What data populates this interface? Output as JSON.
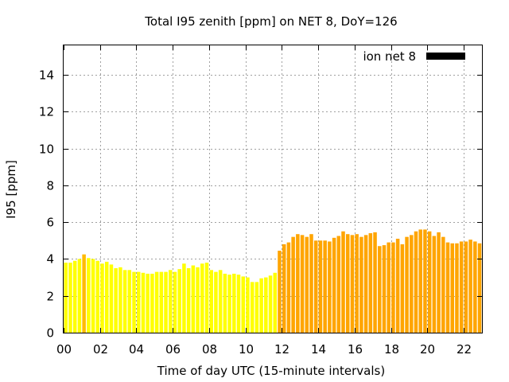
{
  "chart_data": {
    "type": "bar",
    "title": "Total I95 zenith [ppm] on NET 8, DoY=126",
    "xlabel": "Time of day UTC (15-minute intervals)",
    "ylabel": "I95 [ppm]",
    "xlim": [
      0,
      23
    ],
    "ylim": [
      0,
      15.6
    ],
    "bin_hours": 0.25,
    "grid": true,
    "legend": {
      "label": "ion net 8",
      "color": "#000000",
      "placement": "top-right"
    },
    "x_ticks": [
      "00",
      "02",
      "04",
      "06",
      "08",
      "10",
      "12",
      "14",
      "16",
      "18",
      "20",
      "22"
    ],
    "y_ticks": [
      "0",
      "2",
      "4",
      "6",
      "8",
      "10",
      "12",
      "14"
    ],
    "colors": {
      "low": "#ffff00",
      "low_highlight": "#ffbb00",
      "high": "#ffa500"
    },
    "values": [
      3.8,
      3.8,
      3.9,
      4.0,
      4.25,
      4.05,
      4.0,
      3.9,
      3.75,
      3.85,
      3.7,
      3.5,
      3.55,
      3.4,
      3.4,
      3.3,
      3.3,
      3.25,
      3.2,
      3.2,
      3.3,
      3.3,
      3.3,
      3.4,
      3.3,
      3.45,
      3.75,
      3.5,
      3.65,
      3.55,
      3.75,
      3.8,
      3.4,
      3.3,
      3.4,
      3.2,
      3.15,
      3.2,
      3.15,
      3.05,
      3.0,
      2.75,
      2.75,
      2.95,
      3.0,
      3.1,
      3.25,
      4.45,
      4.8,
      4.9,
      5.2,
      5.35,
      5.3,
      5.2,
      5.35,
      5.0,
      5.0,
      5.0,
      4.95,
      5.15,
      5.25,
      5.5,
      5.35,
      5.3,
      5.35,
      5.2,
      5.3,
      5.4,
      5.45,
      4.7,
      4.75,
      4.9,
      4.9,
      5.1,
      4.8,
      5.2,
      5.3,
      5.5,
      5.6,
      5.6,
      5.5,
      5.25,
      5.45,
      5.2,
      4.9,
      4.85,
      4.85,
      4.95,
      4.95,
      5.05,
      4.95,
      4.85
    ],
    "high_regime_from_hour": 11.75,
    "highlight_bin": 4
  }
}
